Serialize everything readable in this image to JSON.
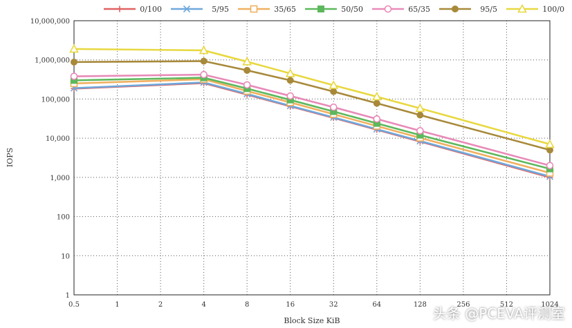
{
  "chart_data": {
    "type": "line",
    "xlabel": "Block Size KiB",
    "ylabel": "IOPS",
    "x_categories": [
      "0.5",
      "1",
      "2",
      "4",
      "8",
      "16",
      "32",
      "64",
      "128",
      "256",
      "512",
      "1024"
    ],
    "y_scale": "log",
    "ylim": [
      1,
      10000000
    ],
    "y_ticks": [
      "1",
      "10",
      "100",
      "1,000",
      "10,000",
      "100,000",
      "1,000,000",
      "10,000,000"
    ],
    "grid": true,
    "legend_position": "top",
    "series": [
      {
        "name": "0/100",
        "color": "#e06060",
        "marker": "plus",
        "x_index": [
          0,
          3,
          4,
          5,
          6,
          7,
          8,
          11
        ],
        "values": [
          185000,
          255000,
          130000,
          65000,
          33000,
          16500,
          8200,
          1000
        ]
      },
      {
        "name": "5/95",
        "color": "#6fa8dc",
        "marker": "x",
        "x_index": [
          0,
          3,
          4,
          5,
          6,
          7,
          8,
          11
        ],
        "values": [
          190000,
          265000,
          135000,
          67000,
          34000,
          17000,
          8500,
          1050
        ]
      },
      {
        "name": "35/65",
        "color": "#f0b060",
        "marker": "square-open",
        "x_index": [
          0,
          3,
          4,
          5,
          6,
          7,
          8,
          11
        ],
        "values": [
          250000,
          320000,
          160000,
          82000,
          41000,
          20500,
          10200,
          1300
        ]
      },
      {
        "name": "50/50",
        "color": "#5cb85c",
        "marker": "square",
        "x_index": [
          0,
          3,
          4,
          5,
          6,
          7,
          8,
          11
        ],
        "values": [
          300000,
          350000,
          185000,
          95000,
          48000,
          24000,
          12000,
          1650
        ]
      },
      {
        "name": "65/35",
        "color": "#e88ab8",
        "marker": "circle-open",
        "x_index": [
          0,
          3,
          4,
          5,
          6,
          7,
          8,
          11
        ],
        "values": [
          380000,
          420000,
          230000,
          120000,
          62000,
          31000,
          15500,
          2000
        ]
      },
      {
        "name": "95/5",
        "color": "#a8893a",
        "marker": "circle",
        "x_index": [
          0,
          3,
          4,
          5,
          6,
          7,
          8,
          11
        ],
        "values": [
          880000,
          930000,
          540000,
          300000,
          155000,
          78000,
          39000,
          5000
        ]
      },
      {
        "name": "100/0",
        "color": "#e8d840",
        "marker": "triangle-open",
        "x_index": [
          0,
          3,
          4,
          5,
          6,
          7,
          8,
          11
        ],
        "values": [
          1900000,
          1750000,
          900000,
          450000,
          225000,
          115000,
          58000,
          7000
        ]
      }
    ]
  },
  "watermark": "头条 @PCEVA评测室"
}
